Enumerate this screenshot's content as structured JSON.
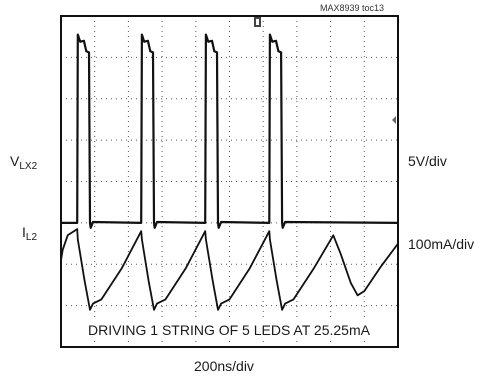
{
  "figure_ref": "MAX8939 toc13",
  "channels": [
    {
      "label_main": "V",
      "label_sub": "LX2",
      "scale": "5V/div"
    },
    {
      "label_main": "I",
      "label_sub": "L2",
      "scale": "100mA/div"
    }
  ],
  "annotation": "DRIVING 1 STRING OF 5 LEDS AT 25.25mA",
  "time_scale": "200ns/div",
  "colors": {
    "trace": "#111111",
    "grid": "#555555",
    "frame": "#111111"
  },
  "chart_data": {
    "type": "line",
    "grid": {
      "x_divisions": 10,
      "y_divisions": 8,
      "dotted": true
    },
    "x_unit": "div",
    "series": [
      {
        "name": "VLX2",
        "baseline_div": 3.0,
        "unit": "div",
        "points": [
          [
            0,
            3.0
          ],
          [
            0.48,
            3.0
          ],
          [
            0.5,
            7.55
          ],
          [
            0.57,
            7.38
          ],
          [
            0.68,
            7.4
          ],
          [
            0.75,
            7.15
          ],
          [
            0.83,
            7.12
          ],
          [
            0.86,
            3.0
          ],
          [
            0.88,
            2.88
          ],
          [
            0.95,
            3.02
          ],
          [
            2.38,
            3.0
          ],
          [
            2.4,
            7.55
          ],
          [
            2.47,
            7.38
          ],
          [
            2.58,
            7.4
          ],
          [
            2.65,
            7.15
          ],
          [
            2.73,
            7.12
          ],
          [
            2.76,
            3.0
          ],
          [
            2.78,
            2.88
          ],
          [
            2.85,
            3.02
          ],
          [
            4.28,
            3.0
          ],
          [
            4.3,
            7.55
          ],
          [
            4.37,
            7.38
          ],
          [
            4.48,
            7.4
          ],
          [
            4.55,
            7.15
          ],
          [
            4.63,
            7.12
          ],
          [
            4.66,
            3.0
          ],
          [
            4.68,
            2.88
          ],
          [
            4.75,
            3.02
          ],
          [
            6.18,
            3.0
          ],
          [
            6.2,
            7.55
          ],
          [
            6.27,
            7.38
          ],
          [
            6.38,
            7.4
          ],
          [
            6.45,
            7.15
          ],
          [
            6.53,
            7.12
          ],
          [
            6.56,
            3.0
          ],
          [
            6.58,
            2.88
          ],
          [
            6.65,
            3.02
          ],
          [
            10,
            3.0
          ]
        ]
      },
      {
        "name": "IL2",
        "unit": "div",
        "points": [
          [
            0,
            2.1
          ],
          [
            0.05,
            2.35
          ],
          [
            0.2,
            2.7
          ],
          [
            0.48,
            2.85
          ],
          [
            0.5,
            2.6
          ],
          [
            0.7,
            1.6
          ],
          [
            0.86,
            0.9
          ],
          [
            0.95,
            1.05
          ],
          [
            1.2,
            1.15
          ],
          [
            1.8,
            1.9
          ],
          [
            2.38,
            2.8
          ],
          [
            2.4,
            2.6
          ],
          [
            2.6,
            1.6
          ],
          [
            2.76,
            0.9
          ],
          [
            2.85,
            1.05
          ],
          [
            3.1,
            1.15
          ],
          [
            3.7,
            1.9
          ],
          [
            4.28,
            2.8
          ],
          [
            4.3,
            2.6
          ],
          [
            4.5,
            1.6
          ],
          [
            4.66,
            0.9
          ],
          [
            4.75,
            1.05
          ],
          [
            5.0,
            1.15
          ],
          [
            5.6,
            1.9
          ],
          [
            6.18,
            2.8
          ],
          [
            6.2,
            2.6
          ],
          [
            6.4,
            1.6
          ],
          [
            6.56,
            0.9
          ],
          [
            6.65,
            1.05
          ],
          [
            6.9,
            1.15
          ],
          [
            7.5,
            1.9
          ],
          [
            8.08,
            2.7
          ],
          [
            8.3,
            2.25
          ],
          [
            8.6,
            1.55
          ],
          [
            8.8,
            1.25
          ],
          [
            9.0,
            1.35
          ],
          [
            9.5,
            1.95
          ],
          [
            10,
            2.5
          ]
        ]
      }
    ]
  }
}
